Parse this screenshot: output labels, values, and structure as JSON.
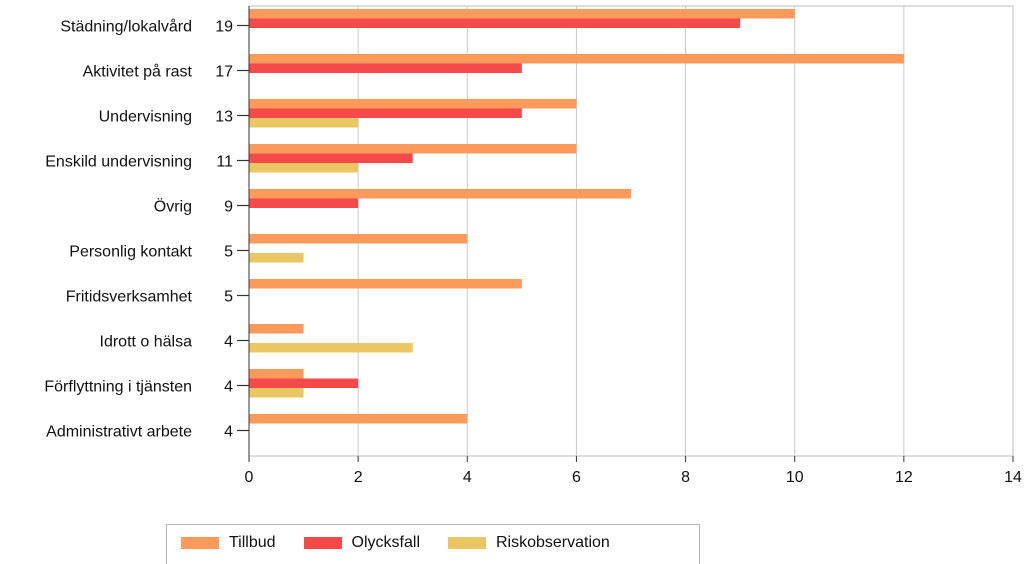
{
  "chart_data": {
    "type": "bar",
    "orientation": "horizontal",
    "categories": [
      "Städning/lokalvård",
      "Aktivitet på rast",
      "Undervisning",
      "Enskild undervisning",
      "Övrig",
      "Personlig kontakt",
      "Fritidsverksamhet",
      "Idrott o hälsa",
      "Förflyttning i tjänsten",
      "Administrativt arbete"
    ],
    "totals": [
      19,
      17,
      13,
      11,
      9,
      5,
      5,
      4,
      4,
      4
    ],
    "series": [
      {
        "name": "Tillbud",
        "color": "#fb9a5a",
        "values": [
          10,
          12,
          6,
          6,
          7,
          4,
          5,
          1,
          1,
          4
        ]
      },
      {
        "name": "Olycksfall",
        "color": "#f64a4a",
        "values": [
          9,
          5,
          5,
          3,
          2,
          0,
          0,
          0,
          2,
          0
        ]
      },
      {
        "name": "Riskobservation",
        "color": "#ebc764",
        "values": [
          0,
          0,
          2,
          2,
          0,
          1,
          0,
          3,
          1,
          0
        ]
      }
    ],
    "xlim": [
      0,
      14
    ],
    "xticks": [
      0,
      2,
      4,
      6,
      8,
      10,
      12,
      14
    ],
    "grid": true,
    "legend_position": "bottom"
  }
}
